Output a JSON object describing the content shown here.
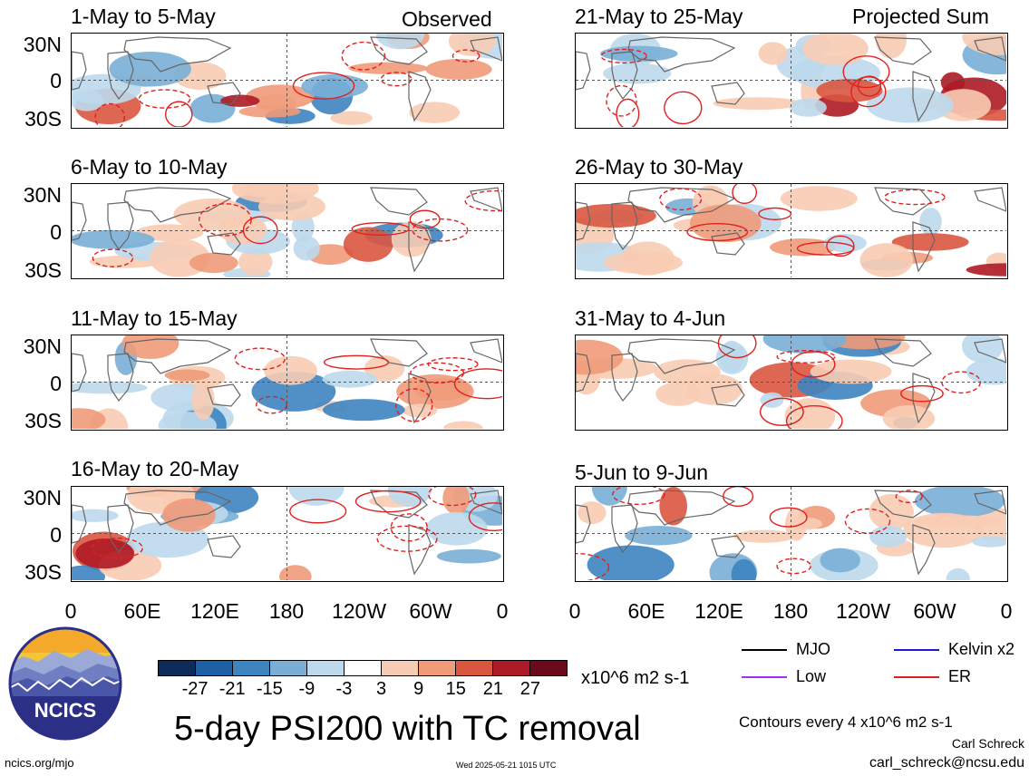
{
  "left_panels": [
    {
      "title": "1-May to 5-May",
      "tag": "Observed"
    },
    {
      "title": "6-May to 10-May",
      "tag": ""
    },
    {
      "title": "11-May to 15-May",
      "tag": ""
    },
    {
      "title": "16-May to 20-May",
      "tag": ""
    }
  ],
  "right_panels": [
    {
      "title": "21-May to 25-May",
      "tag": "Projected Sum"
    },
    {
      "title": "26-May to 30-May",
      "tag": ""
    },
    {
      "title": "31-May to 4-Jun",
      "tag": ""
    },
    {
      "title": "5-Jun to 9-Jun",
      "tag": ""
    }
  ],
  "lat_labels": [
    "30N",
    "0",
    "30S"
  ],
  "lon_labels": [
    "0",
    "60E",
    "120E",
    "180",
    "120W",
    "60W",
    "0"
  ],
  "colorbar": {
    "labels": [
      "-27",
      "-21",
      "-15",
      "-9",
      "-3",
      "3",
      "9",
      "15",
      "21",
      "27"
    ],
    "colors": [
      "#0d2c5a",
      "#1f5fa6",
      "#3e84c0",
      "#79afd6",
      "#bdd9ec",
      "#ffffff",
      "#f8ccb4",
      "#f09a79",
      "#d9573f",
      "#ae1a25",
      "#6a0a1c"
    ],
    "units": "x10^6 m2 s-1"
  },
  "legend": [
    {
      "label": "MJO",
      "color": "#000000"
    },
    {
      "label": "Kelvin x2",
      "color": "#1a1ad6"
    },
    {
      "label": "Low",
      "color": "#9b30ff"
    },
    {
      "label": "ER",
      "color": "#e02020"
    }
  ],
  "main_title": "5-day PSI200 with TC removal",
  "contour_note": "Contours every 4 x10^6 m2 s-1",
  "author": "Carl Schreck",
  "email": "carl_schreck@ncsu.edu",
  "site": "ncics.org/mjo",
  "timestamp": "Wed 2025-05-21 1015 UTC",
  "logo_text": "NCICS"
}
